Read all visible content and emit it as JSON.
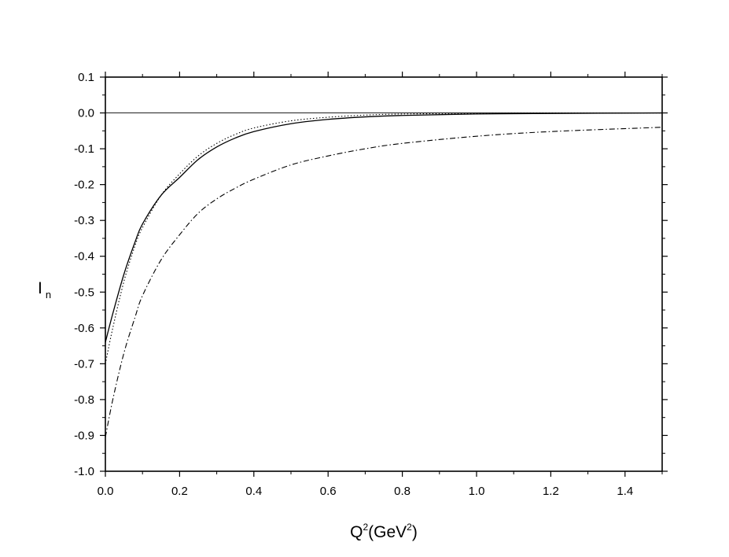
{
  "chart_data": {
    "type": "line",
    "xlabel": {
      "base": "Q",
      "sup1": "2",
      "mid": "(GeV",
      "sup2": "2",
      "end": ")"
    },
    "ylabel": {
      "base": "I",
      "sub": "n"
    },
    "xlim": [
      0.0,
      1.5
    ],
    "ylim": [
      -1.0,
      0.1
    ],
    "x_ticks": [
      0.0,
      0.2,
      0.4,
      0.6,
      0.8,
      1.0,
      1.2,
      1.4
    ],
    "x_tick_labels": [
      "0.0",
      "0.2",
      "0.4",
      "0.6",
      "0.8",
      "1.0",
      "1.2",
      "1.4"
    ],
    "y_ticks": [
      0.1,
      0.0,
      -0.1,
      -0.2,
      -0.3,
      -0.4,
      -0.5,
      -0.6,
      -0.7,
      -0.8,
      -0.9,
      -1.0
    ],
    "y_tick_labels": [
      "0.1",
      "0.0",
      "-0.1",
      "-0.2",
      "-0.3",
      "-0.4",
      "-0.5",
      "-0.6",
      "-0.7",
      "-0.8",
      "-0.9",
      "-1.0"
    ],
    "grid": false,
    "legend": "none",
    "zero_line": 0.0,
    "series": [
      {
        "style": "solid",
        "x": [
          0.0,
          0.02,
          0.05,
          0.08,
          0.1,
          0.15,
          0.2,
          0.25,
          0.3,
          0.35,
          0.4,
          0.5,
          0.6,
          0.7,
          0.8,
          1.0,
          1.2,
          1.5
        ],
        "y": [
          -0.64,
          -0.56,
          -0.45,
          -0.36,
          -0.31,
          -0.23,
          -0.18,
          -0.13,
          -0.095,
          -0.07,
          -0.052,
          -0.03,
          -0.018,
          -0.011,
          -0.007,
          -0.003,
          -0.0015,
          0.0
        ]
      },
      {
        "style": "dotted",
        "x": [
          0.0,
          0.02,
          0.05,
          0.08,
          0.1,
          0.15,
          0.2,
          0.25,
          0.3,
          0.35,
          0.4,
          0.5,
          0.6,
          0.7,
          0.8,
          1.0,
          1.2,
          1.5
        ],
        "y": [
          -0.7,
          -0.6,
          -0.47,
          -0.37,
          -0.32,
          -0.23,
          -0.17,
          -0.12,
          -0.085,
          -0.06,
          -0.042,
          -0.022,
          -0.012,
          -0.006,
          -0.003,
          -0.001,
          0.0,
          0.0
        ]
      },
      {
        "style": "dash-dot",
        "x": [
          0.0,
          0.02,
          0.05,
          0.08,
          0.1,
          0.15,
          0.2,
          0.25,
          0.3,
          0.35,
          0.4,
          0.5,
          0.6,
          0.7,
          0.8,
          1.0,
          1.2,
          1.5
        ],
        "y": [
          -0.905,
          -0.8,
          -0.67,
          -0.57,
          -0.51,
          -0.41,
          -0.34,
          -0.28,
          -0.24,
          -0.21,
          -0.185,
          -0.145,
          -0.12,
          -0.1,
          -0.085,
          -0.065,
          -0.052,
          -0.04
        ]
      }
    ]
  }
}
